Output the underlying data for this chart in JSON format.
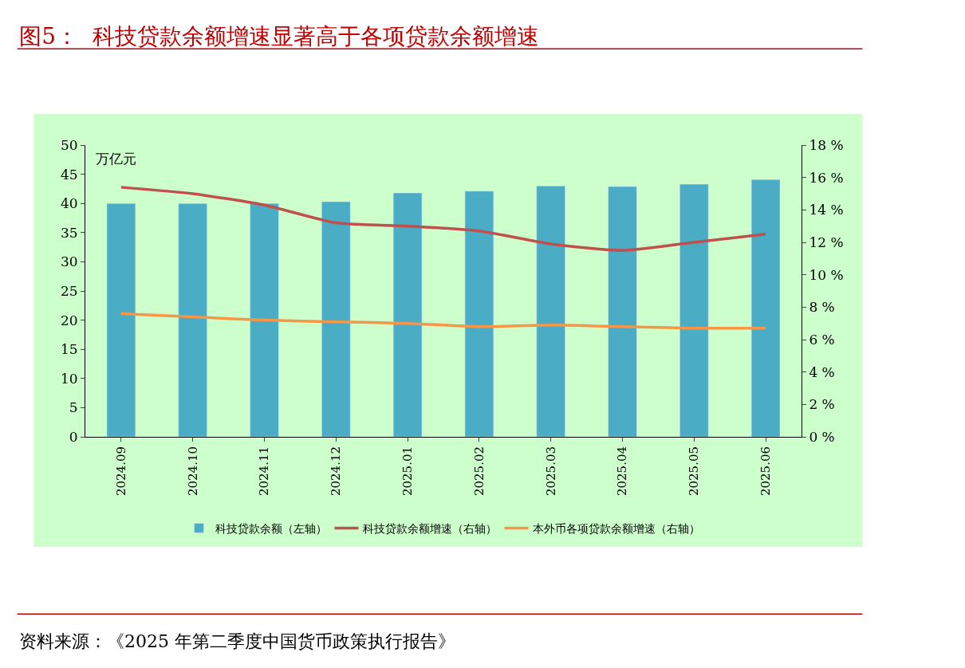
{
  "chart_data": {
    "type": "bar",
    "title": "图5：  科技贷款余额增速显著高于各项贷款余额增速",
    "ylabel": "万亿元",
    "annotations": [
      "资料来源：《2025 年第二季度中国货币政策执行报告》"
    ],
    "categories": [
      "2024.09",
      "2024.10",
      "2024.11",
      "2024.12",
      "2025.01",
      "2025.02",
      "2025.03",
      "2025.04",
      "2025.05",
      "2025.06"
    ],
    "series": [
      {
        "name": "科技贷款余额（左轴）",
        "color": "#4bacc6",
        "values": [
          40.0,
          40.0,
          40.0,
          40.3,
          41.8,
          42.1,
          43.0,
          42.9,
          43.3,
          44.1
        ]
      },
      {
        "name": "科技贷款余额增速（右轴）",
        "type": "line",
        "axis": "y2",
        "color": "#c0504d",
        "values": [
          15.4,
          15.0,
          14.3,
          13.2,
          13.0,
          12.7,
          11.9,
          11.5,
          12.0,
          12.5
        ]
      },
      {
        "name": "本外币各项贷款余额增速（右轴）",
        "type": "line",
        "axis": "y2",
        "color": "#f79646",
        "values": [
          7.6,
          7.4,
          7.2,
          7.1,
          7.0,
          6.8,
          6.9,
          6.8,
          6.7,
          6.7
        ]
      }
    ],
    "ylim": [
      0,
      50
    ],
    "yticks": [
      0,
      5,
      10,
      15,
      20,
      25,
      30,
      35,
      40,
      45,
      50
    ],
    "y2lim": [
      0,
      18
    ],
    "y2ticks": [
      {
        "value": 0,
        "label": "0 %"
      },
      {
        "value": 2,
        "label": "2 %"
      },
      {
        "value": 4,
        "label": "4 %"
      },
      {
        "value": 6,
        "label": "6 %"
      },
      {
        "value": 8,
        "label": "8 %"
      },
      {
        "value": 10,
        "label": "10 %"
      },
      {
        "value": 12,
        "label": "12 %"
      },
      {
        "value": 14,
        "label": "14 %"
      },
      {
        "value": 16,
        "label": "16 %"
      },
      {
        "value": 18,
        "label": "18 %"
      }
    ],
    "grid": false,
    "legend": "bottom",
    "marker": "none",
    "line_style": "solid"
  }
}
